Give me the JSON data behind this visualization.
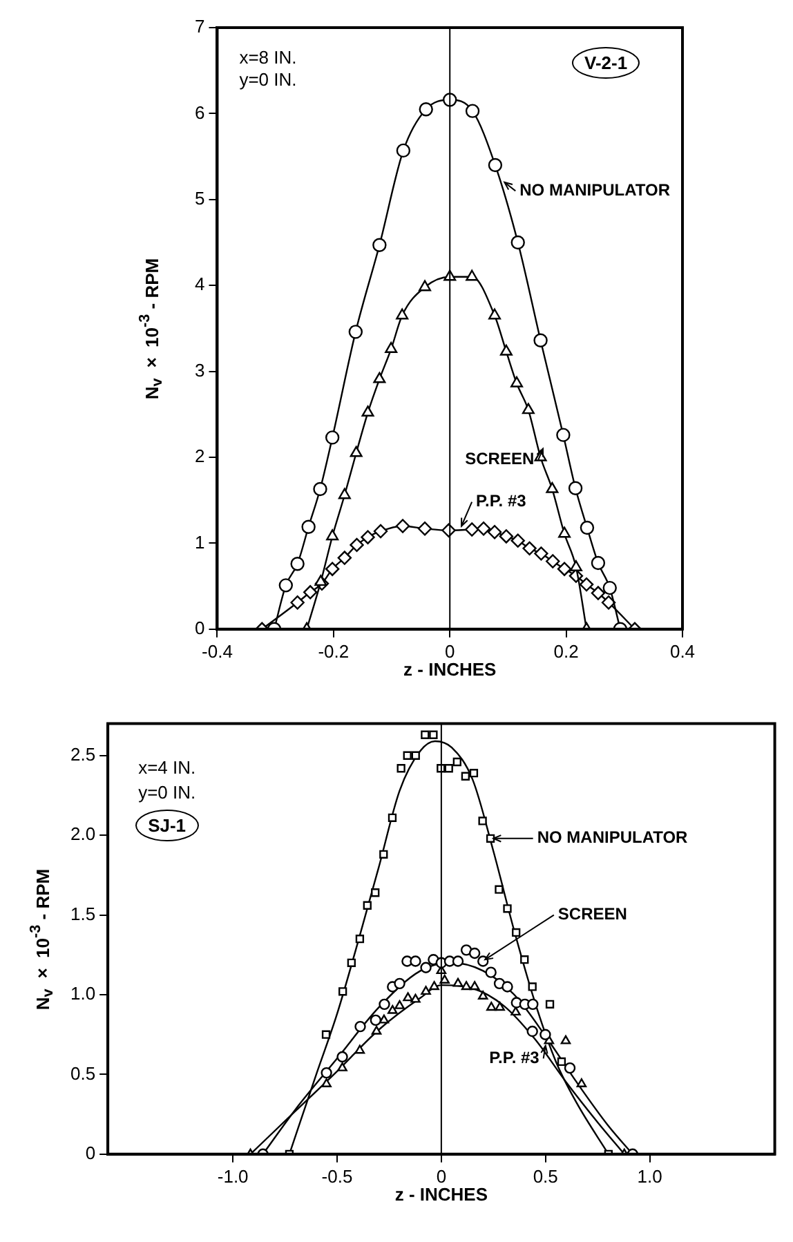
{
  "chart_data": [
    {
      "type": "line",
      "xlabel": "z - INCHES",
      "ylabel": "N$_{v}$ × 10$^{-3}$ - RPM",
      "xlim": [
        -0.4,
        0.4
      ],
      "xticks": [
        -0.4,
        -0.2,
        0,
        0.2,
        0.4
      ],
      "ylim": [
        0,
        7
      ],
      "yticks": [
        0,
        1,
        2,
        3,
        4,
        5,
        6,
        7
      ],
      "annotations": [
        "x=8 IN.",
        "y=0 IN.",
        "V-2-1"
      ],
      "ref_lines": [
        {
          "axis": "x",
          "value": 0,
          "color": "#000000"
        }
      ],
      "series": [
        {
          "name": "NO MANIPULATOR",
          "color": "#000000",
          "marker": "circle",
          "x": [
            -0.302,
            -0.282,
            -0.262,
            -0.243,
            -0.223,
            -0.202,
            -0.162,
            -0.121,
            -0.08,
            -0.041,
            0,
            0.039,
            0.078,
            0.117,
            0.156,
            0.195,
            0.216,
            0.236,
            0.255,
            0.275,
            0.293
          ],
          "values": [
            0,
            0.51,
            0.76,
            1.19,
            1.63,
            2.23,
            3.46,
            4.47,
            5.57,
            6.05,
            6.16,
            6.03,
            5.4,
            4.5,
            3.36,
            2.26,
            1.64,
            1.18,
            0.77,
            0.48,
            0
          ]
        },
        {
          "name": "SCREEN",
          "color": "#000000",
          "marker": "triangle",
          "x": [
            -0.246,
            -0.222,
            -0.202,
            -0.181,
            -0.161,
            -0.141,
            -0.121,
            -0.101,
            -0.082,
            -0.043,
            0,
            0.038,
            0.077,
            0.097,
            0.115,
            0.135,
            0.156,
            0.176,
            0.197,
            0.217,
            0.235
          ],
          "values": [
            0,
            0.55,
            1.08,
            1.56,
            2.05,
            2.52,
            2.91,
            3.26,
            3.65,
            3.98,
            4.1,
            4.1,
            3.65,
            3.23,
            2.86,
            2.55,
            2.0,
            1.63,
            1.11,
            0.72,
            0
          ]
        },
        {
          "name": "P.P. #3",
          "color": "#000000",
          "marker": "diamond",
          "x": [
            -0.323,
            -0.262,
            -0.24,
            -0.22,
            -0.202,
            -0.181,
            -0.16,
            -0.141,
            -0.119,
            -0.081,
            -0.043,
            -0.002,
            0.038,
            0.058,
            0.077,
            0.097,
            0.117,
            0.137,
            0.157,
            0.177,
            0.197,
            0.217,
            0.235,
            0.255,
            0.273,
            0.318
          ],
          "values": [
            0,
            0.31,
            0.43,
            0.53,
            0.7,
            0.83,
            0.98,
            1.07,
            1.14,
            1.2,
            1.17,
            1.15,
            1.16,
            1.17,
            1.13,
            1.08,
            1.03,
            0.94,
            0.88,
            0.79,
            0.7,
            0.62,
            0.52,
            0.42,
            0.31,
            0
          ]
        }
      ]
    },
    {
      "type": "scatter",
      "xlabel": "z - INCHES",
      "ylabel": "N$_{v}$ × 10$^{-3}$ - RPM",
      "xlim": [
        -1.6,
        1.6
      ],
      "xticks": [
        {
          "value": -1,
          "label": "-1.0"
        },
        -0.5,
        0,
        0.5,
        {
          "value": 1,
          "label": "1.0"
        }
      ],
      "ylim": [
        0,
        2.7
      ],
      "yticks": [
        0,
        0.5,
        {
          "value": 1,
          "label": "1.0"
        },
        1.5,
        {
          "value": 2,
          "label": "2.0"
        },
        2.5
      ],
      "annotations": [
        "x=4 IN.",
        "y=0 IN.",
        "SJ-1"
      ],
      "ref_lines": [
        {
          "axis": "x",
          "value": 0,
          "color": "#000000"
        }
      ],
      "series": [
        {
          "name": "NO MANIPULATOR",
          "color": "#000000",
          "marker": "square",
          "x": [
            -0.729,
            -0.553,
            -0.473,
            -0.431,
            -0.391,
            -0.355,
            -0.317,
            -0.277,
            -0.235,
            -0.193,
            -0.163,
            -0.123,
            -0.078,
            -0.038,
            -0.002,
            0.036,
            0.076,
            0.116,
            0.156,
            0.198,
            0.236,
            0.277,
            0.317,
            0.359,
            0.399,
            0.437,
            0.521,
            0.577,
            0.802
          ],
          "values": [
            0,
            0.75,
            1.02,
            1.2,
            1.35,
            1.56,
            1.64,
            1.88,
            2.11,
            2.42,
            2.5,
            2.5,
            2.63,
            2.63,
            2.42,
            2.42,
            2.46,
            2.37,
            2.39,
            2.09,
            1.98,
            1.66,
            1.54,
            1.39,
            1.22,
            1.05,
            0.94,
            0.58,
            0
          ]
        },
        {
          "name": "SCREEN",
          "color": "#000000",
          "marker": "circle",
          "x": [
            -0.856,
            -0.551,
            -0.475,
            -0.389,
            -0.315,
            -0.273,
            -0.234,
            -0.2,
            -0.164,
            -0.124,
            -0.074,
            -0.038,
            0,
            0.04,
            0.08,
            0.12,
            0.16,
            0.2,
            0.238,
            0.279,
            0.317,
            0.361,
            0.401,
            0.439,
            0.437,
            0.499,
            0.617,
            0.918
          ],
          "values": [
            0,
            0.51,
            0.61,
            0.8,
            0.84,
            0.94,
            1.05,
            1.07,
            1.21,
            1.21,
            1.17,
            1.22,
            1.2,
            1.21,
            1.21,
            1.28,
            1.26,
            1.21,
            1.14,
            1.07,
            1.05,
            0.95,
            0.94,
            0.94,
            0.77,
            0.75,
            0.54,
            0
          ]
        },
        {
          "name": "P.P. #3",
          "color": "#000000",
          "marker": "triangle",
          "x": [
            -0.916,
            -0.551,
            -0.475,
            -0.391,
            -0.311,
            -0.275,
            -0.234,
            -0.2,
            -0.16,
            -0.124,
            -0.074,
            -0.034,
            0,
            0.016,
            0.08,
            0.12,
            0.16,
            0.2,
            0.24,
            0.281,
            0.357,
            0.517,
            0.597,
            0.673,
            0.878
          ],
          "values": [
            0,
            0.44,
            0.54,
            0.65,
            0.77,
            0.84,
            0.9,
            0.93,
            0.98,
            0.97,
            1.02,
            1.05,
            1.15,
            1.09,
            1.07,
            1.05,
            1.05,
            0.99,
            0.92,
            0.92,
            0.89,
            0.71,
            0.71,
            0.44,
            0
          ]
        },
        {
          "type": "line",
          "color": "#000000",
          "marker": "none",
          "x": [
            -0.729,
            -0.6,
            -0.5,
            -0.4,
            -0.3,
            -0.2,
            -0.1,
            -0.03,
            0.05,
            0.15,
            0.25,
            0.35,
            0.45,
            0.55,
            0.65,
            0.802
          ],
          "values": [
            0,
            0.5,
            0.88,
            1.33,
            1.8,
            2.28,
            2.53,
            2.59,
            2.55,
            2.35,
            1.9,
            1.4,
            0.95,
            0.58,
            0.32,
            0
          ]
        },
        {
          "type": "line",
          "color": "#000000",
          "marker": "none",
          "x": [
            -0.856,
            -0.7,
            -0.5,
            -0.3,
            -0.1,
            0.05,
            0.2,
            0.35,
            0.5,
            0.65,
            0.8,
            0.918
          ],
          "values": [
            0,
            0.28,
            0.6,
            0.92,
            1.15,
            1.2,
            1.15,
            1.0,
            0.74,
            0.45,
            0.18,
            0
          ]
        },
        {
          "type": "line",
          "color": "#000000",
          "marker": "none",
          "x": [
            -0.916,
            -0.7,
            -0.5,
            -0.3,
            -0.1,
            0,
            0.15,
            0.3,
            0.45,
            0.6,
            0.75,
            0.878
          ],
          "values": [
            0,
            0.27,
            0.52,
            0.78,
            0.98,
            1.06,
            1.04,
            0.93,
            0.72,
            0.45,
            0.2,
            0
          ]
        }
      ]
    }
  ]
}
